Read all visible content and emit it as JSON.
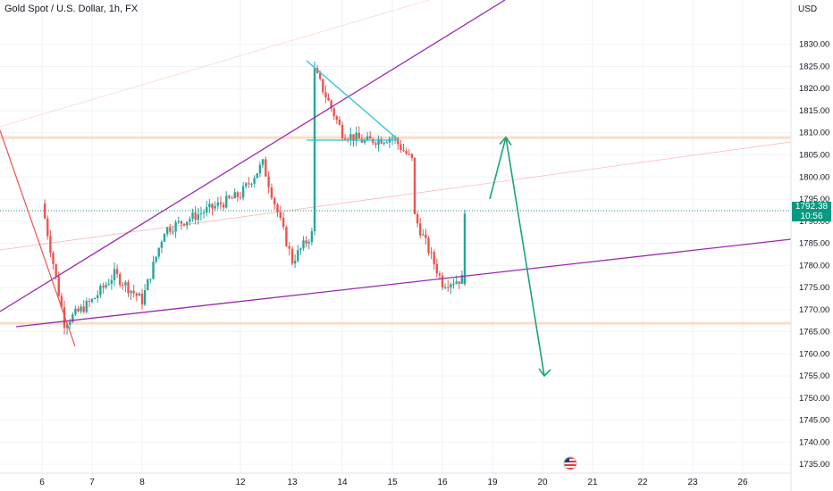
{
  "header": {
    "title": "Gold Spot / U.S. Dollar, 1h, FX",
    "currency": "USD"
  },
  "price_tag": {
    "price": "1792.38",
    "countdown": "10:56"
  },
  "colors": {
    "bull": "#26a69a",
    "bear": "#ef5350",
    "trend_purple": "#9c27b0",
    "trend_red": "#ef5350",
    "trend_teal": "#26c6da",
    "arrow": "#1aa37d",
    "resistance_zone": "#f7c7a6",
    "last_price_line": "#089981"
  },
  "chart_data": {
    "type": "line",
    "title": "Gold Spot / U.S. Dollar, 1h, FX",
    "x_tick_labels": [
      "6",
      "7",
      "8",
      "12",
      "13",
      "14",
      "15",
      "16",
      "19",
      "20",
      "21",
      "22",
      "23",
      "26"
    ],
    "y_tick_labels": [
      "1735.00",
      "1740.00",
      "1745.00",
      "1750.00",
      "1755.00",
      "1760.00",
      "1765.00",
      "1770.00",
      "1775.00",
      "1780.00",
      "1785.00",
      "1790.00",
      "1795.00",
      "1800.00",
      "1805.00",
      "1810.00",
      "1815.00",
      "1820.00",
      "1825.00",
      "1830.00"
    ],
    "ylim": [
      1733,
      1836
    ],
    "series": [
      {
        "x": [
          "6",
          "6",
          "7",
          "7",
          "8",
          "8",
          "12",
          "12",
          "13",
          "13",
          "13",
          "14",
          "14",
          "15",
          "15",
          "15",
          "16",
          "16",
          "16"
        ],
        "values": [
          1794,
          1767,
          1772,
          1778,
          1772,
          1788,
          1796,
          1803,
          1781,
          1788,
          1824,
          1810,
          1808,
          1809,
          1803,
          1791,
          1776,
          1777,
          1792.38
        ]
      }
    ],
    "last_price": 1792.38,
    "support_zone_price": 1767,
    "resistance_zone_price": 1809,
    "projection_path_prices": [
      1795,
      1809,
      1755
    ],
    "grid": true,
    "event_badge": "US"
  }
}
